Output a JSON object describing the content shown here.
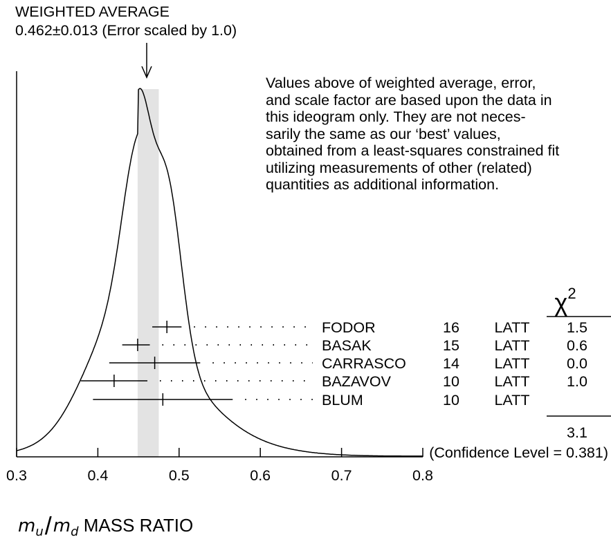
{
  "header": {
    "title": "WEIGHTED AVERAGE",
    "subtitle": "0.462±0.013 (Error scaled by 1.0)"
  },
  "note_lines": [
    "Values above of weighted average, error,",
    "and scale factor are based upon the data in",
    "this ideogram only.  They are not neces-",
    "sarily the same as our ‘best’ values,",
    "obtained from a least-squares constrained fit",
    "utilizing measurements of other (related)",
    "quantities as additional information."
  ],
  "chi2_header": "χ",
  "chi2_power": "2",
  "chi2_total": "3.1",
  "confidence_text": "(Confidence Level = 0.381)",
  "xlabel": {
    "m": "m",
    "u": "u",
    "d": "d",
    "text": " MASS RATIO"
  },
  "chart_data": {
    "type": "ideogram",
    "xlim": [
      0.3,
      0.8
    ],
    "xticks": [
      "0.3",
      "0.4",
      "0.5",
      "0.6",
      "0.7",
      "0.8"
    ],
    "weighted_average": {
      "value": 0.462,
      "error": 0.013
    },
    "measurements": [
      {
        "name": "FODOR",
        "year": "16",
        "tech": "LATT",
        "value": 0.485,
        "err_lo": 0.018,
        "err_hi": 0.018,
        "chi2": "1.5"
      },
      {
        "name": "BASAK",
        "year": "15",
        "tech": "LATT",
        "value": 0.449,
        "err_lo": 0.019,
        "err_hi": 0.015,
        "chi2": "0.6"
      },
      {
        "name": "CARRASCO",
        "year": "14",
        "tech": "LATT",
        "value": 0.47,
        "err_lo": 0.056,
        "err_hi": 0.056,
        "chi2": "0.0"
      },
      {
        "name": "BAZAVOV",
        "year": "10",
        "tech": "LATT",
        "value": 0.42,
        "err_lo": 0.041,
        "err_hi": 0.041,
        "chi2": "1.0"
      },
      {
        "name": "BLUM",
        "year": "10",
        "tech": "LATT",
        "value": 0.48,
        "err_lo": 0.086,
        "err_hi": 0.086,
        "chi2": ""
      }
    ]
  }
}
